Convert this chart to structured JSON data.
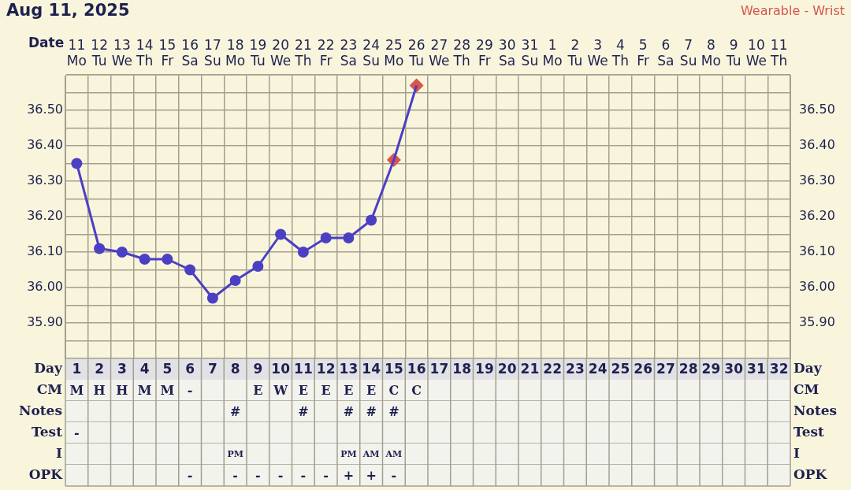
{
  "chart_data": {
    "type": "line",
    "title": "Aug 11, 2025",
    "subtitle": "Wearable - Wrist",
    "xlabel": "Date",
    "categories": [
      "11 Mo",
      "12 Tu",
      "13 We",
      "14 Th",
      "15 Fr",
      "16 Sa",
      "17 Su",
      "18 Mo",
      "19 Tu",
      "20 We",
      "21 Th",
      "22 Fr",
      "23 Sa",
      "24 Su",
      "25 Mo",
      "26 Tu",
      "27 We",
      "28 Th",
      "29 Fr",
      "30 Sa",
      "31 Su",
      "1 Mo",
      "2 Tu",
      "3 We",
      "4 Th",
      "5 Fr",
      "6 Sa",
      "7 Su",
      "8 Mo",
      "9 Tu",
      "10 We",
      "11 Th"
    ],
    "series": [
      {
        "type": "line",
        "color": "#4b3fc4",
        "marker": "none",
        "values": [
          36.35,
          36.11,
          36.1,
          36.08,
          36.08,
          36.05,
          35.97,
          36.02,
          36.06,
          36.15,
          36.1,
          36.14,
          36.14,
          36.19,
          36.36,
          36.57,
          null,
          null,
          null,
          null,
          null,
          null,
          null,
          null,
          null,
          null,
          null,
          null,
          null,
          null,
          null,
          null
        ]
      },
      {
        "type": "scatter",
        "color": "#4b3fc4",
        "marker": "circle",
        "values": [
          36.35,
          36.11,
          36.1,
          36.08,
          36.08,
          36.05,
          35.97,
          36.02,
          36.06,
          36.15,
          36.1,
          36.14,
          36.14,
          36.19,
          null,
          null,
          null,
          null,
          null,
          null,
          null,
          null,
          null,
          null,
          null,
          null,
          null,
          null,
          null,
          null,
          null,
          null
        ]
      },
      {
        "type": "scatter",
        "color": "#d9534f",
        "marker": "diamond",
        "values": [
          null,
          null,
          null,
          null,
          null,
          null,
          null,
          null,
          null,
          null,
          null,
          null,
          null,
          null,
          36.36,
          36.57,
          null,
          null,
          null,
          null,
          null,
          null,
          null,
          null,
          null,
          null,
          null,
          null,
          null,
          null,
          null,
          null
        ]
      }
    ],
    "ylim": [
      35.8,
      36.6
    ],
    "yticks": [
      {
        "value": 35.8,
        "label": null
      },
      {
        "value": 35.85,
        "label": null
      },
      {
        "value": 35.9,
        "label": "35.90"
      },
      {
        "value": 35.95,
        "label": null
      },
      {
        "value": 36.0,
        "label": "36.00"
      },
      {
        "value": 36.05,
        "label": null
      },
      {
        "value": 36.1,
        "label": "36.10"
      },
      {
        "value": 36.15,
        "label": null
      },
      {
        "value": 36.2,
        "label": "36.20"
      },
      {
        "value": 36.25,
        "label": null
      },
      {
        "value": 36.3,
        "label": "36.30"
      },
      {
        "value": 36.35,
        "label": null
      },
      {
        "value": 36.4,
        "label": "36.40"
      },
      {
        "value": 36.45,
        "label": null
      },
      {
        "value": 36.5,
        "label": "36.50"
      },
      {
        "value": 36.55,
        "label": null
      },
      {
        "value": 36.6,
        "label": null
      }
    ],
    "y2lim": [
      35.8,
      36.6
    ],
    "y2ticks": [
      {
        "value": 35.8,
        "label": null
      },
      {
        "value": 35.85,
        "label": null
      },
      {
        "value": 35.9,
        "label": "35.90"
      },
      {
        "value": 35.95,
        "label": null
      },
      {
        "value": 36.0,
        "label": "36.00"
      },
      {
        "value": 36.05,
        "label": null
      },
      {
        "value": 36.1,
        "label": "36.10"
      },
      {
        "value": 36.15,
        "label": null
      },
      {
        "value": 36.2,
        "label": "36.20"
      },
      {
        "value": 36.25,
        "label": null
      },
      {
        "value": 36.3,
        "label": "36.30"
      },
      {
        "value": 36.35,
        "label": null
      },
      {
        "value": 36.4,
        "label": "36.40"
      },
      {
        "value": 36.45,
        "label": null
      },
      {
        "value": 36.5,
        "label": "36.50"
      },
      {
        "value": 36.55,
        "label": null
      },
      {
        "value": 36.6,
        "label": null
      }
    ],
    "grid": true,
    "x2label": "Day",
    "x2lim": [
      0.5,
      32.5
    ],
    "x2ticks": [
      1,
      2,
      3,
      4,
      5,
      6,
      7,
      8,
      9,
      10,
      11,
      12,
      13,
      14,
      15,
      16,
      17,
      18,
      19,
      20,
      21,
      22,
      23,
      24,
      25,
      26,
      27,
      28,
      29,
      30,
      31,
      32
    ],
    "annotations": [
      "CM",
      "M H H M M -   E W E E E E C C",
      "Notes",
      "       #   #  # # #",
      "Test",
      "-",
      "I",
      "       PM     PM AM AM",
      "OPK",
      "     -  - - - - - + + -"
    ]
  }
}
